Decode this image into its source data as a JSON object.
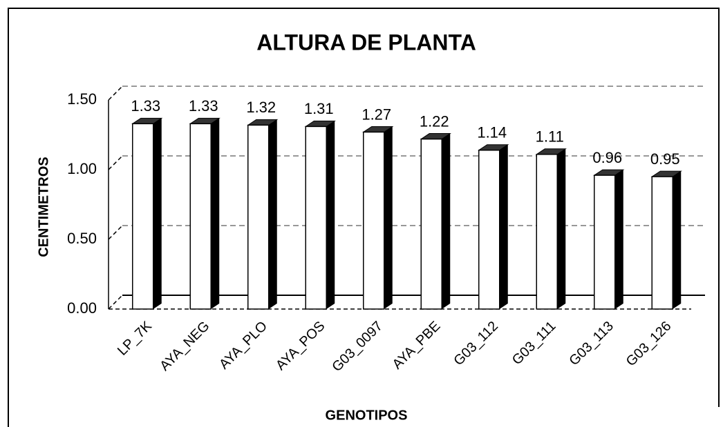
{
  "chart_data": {
    "type": "bar",
    "title": "ALTURA DE PLANTA",
    "x_label": "GENOTIPOS",
    "y_label": "CENTIMETROS",
    "categories": [
      "LP_7K",
      "AYA_NEG",
      "AYA_PLO",
      "AYA_POS",
      "G03_0097",
      "AYA_PBE",
      "G03_112",
      "G03_111",
      "G03_113",
      "G03_126"
    ],
    "values": [
      1.33,
      1.33,
      1.32,
      1.31,
      1.27,
      1.22,
      1.14,
      1.11,
      0.96,
      0.95
    ],
    "color": "#ffffff",
    "ylim": [
      0,
      1.5
    ],
    "yticks": [
      {
        "value": 0,
        "label": "0.00"
      },
      {
        "value": 0.5,
        "label": "0.50"
      },
      {
        "value": 1,
        "label": "1.00"
      },
      {
        "value": 1.5,
        "label": "1.50"
      }
    ],
    "grid": true
  }
}
